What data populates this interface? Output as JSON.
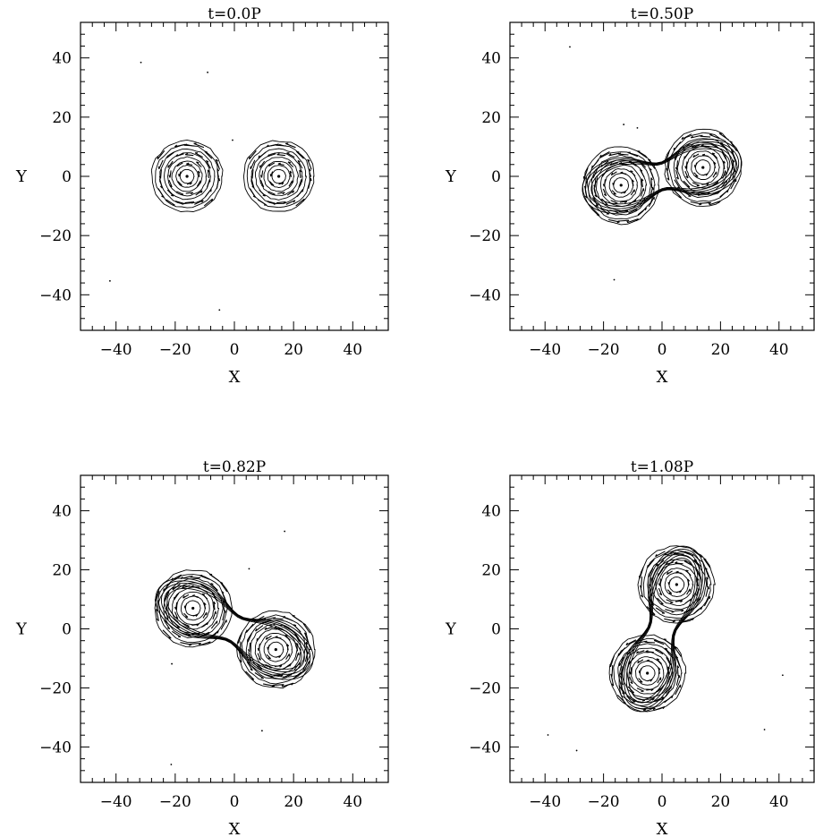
{
  "chart_data": [
    {
      "type": "contour",
      "title": "t=0.0P",
      "xlabel": "X",
      "ylabel": "Y",
      "xlim": [
        -52,
        52
      ],
      "ylim": [
        -52,
        52
      ],
      "xticks": [
        -40,
        -20,
        0,
        20,
        40
      ],
      "yticks": [
        -40,
        -20,
        0,
        20,
        40
      ],
      "components": [
        {
          "center": [
            -16,
            0
          ],
          "radius": 12,
          "aspect": 1.0
        },
        {
          "center": [
            15,
            0
          ],
          "radius": 12,
          "aspect": 1.0
        }
      ],
      "bridge": false,
      "rotation_deg": 0
    },
    {
      "type": "contour",
      "title": "t=0.50P",
      "xlabel": "X",
      "ylabel": "Y",
      "xlim": [
        -52,
        52
      ],
      "ylim": [
        -52,
        52
      ],
      "xticks": [
        -40,
        -20,
        0,
        20,
        40
      ],
      "yticks": [
        -40,
        -20,
        0,
        20,
        40
      ],
      "components": [
        {
          "center": [
            -14,
            -3
          ],
          "radius": 13,
          "aspect": 1.0
        },
        {
          "center": [
            14,
            3
          ],
          "radius": 13,
          "aspect": 1.0
        }
      ],
      "bridge": true,
      "rotation_deg": 12
    },
    {
      "type": "contour",
      "title": "t=0.82P",
      "xlabel": "X",
      "ylabel": "Y",
      "xlim": [
        -52,
        52
      ],
      "ylim": [
        -52,
        52
      ],
      "xticks": [
        -40,
        -20,
        0,
        20,
        40
      ],
      "yticks": [
        -40,
        -20,
        0,
        20,
        40
      ],
      "components": [
        {
          "center": [
            -14,
            7
          ],
          "radius": 13,
          "aspect": 1.0
        },
        {
          "center": [
            14,
            -7
          ],
          "radius": 13,
          "aspect": 1.0
        }
      ],
      "bridge": true,
      "rotation_deg": -28
    },
    {
      "type": "contour",
      "title": "t=1.08P",
      "xlabel": "X",
      "ylabel": "Y",
      "xlim": [
        -52,
        52
      ],
      "ylim": [
        -52,
        52
      ],
      "xticks": [
        -40,
        -20,
        0,
        20,
        40
      ],
      "yticks": [
        -40,
        -20,
        0,
        20,
        40
      ],
      "components": [
        {
          "center": [
            5,
            15
          ],
          "radius": 13,
          "aspect": 1.0
        },
        {
          "center": [
            -5,
            -15
          ],
          "radius": 13,
          "aspect": 1.0
        }
      ],
      "bridge": true,
      "rotation_deg": 72
    }
  ]
}
